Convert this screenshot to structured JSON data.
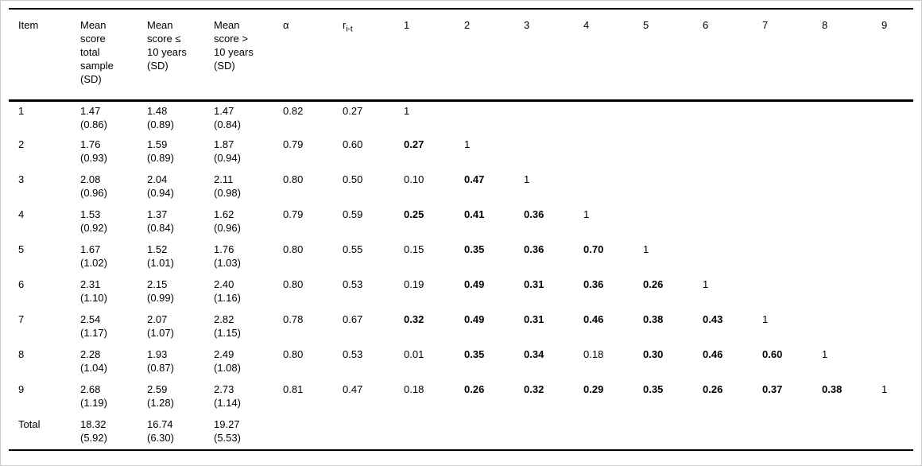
{
  "page": {
    "background": "#ffffff",
    "border_color": "#c9c9c9",
    "rule_color": "#000000"
  },
  "table": {
    "headers": {
      "item": "Item",
      "mean_total": "Mean\nscore\ntotal\nsample\n(SD)",
      "mean_le10": "Mean\nscore ≤\n10 years\n(SD)",
      "mean_gt10": "Mean\nscore >\n10 years\n(SD)",
      "alpha": "α",
      "r_base": "r",
      "r_sub": "i-t",
      "corr_columns": [
        "1",
        "2",
        "3",
        "4",
        "5",
        "6",
        "7",
        "8",
        "9"
      ]
    },
    "rows": [
      {
        "item": "1",
        "mean_total": "1.47",
        "sd_total": "(0.86)",
        "mean_le10": "1.48",
        "sd_le10": "(0.89)",
        "mean_gt10": "1.47",
        "sd_gt10": "(0.84)",
        "alpha": "0.82",
        "rit": "0.27",
        "corr": [
          {
            "v": "1",
            "bold": false
          }
        ]
      },
      {
        "item": "2",
        "mean_total": "1.76",
        "sd_total": "(0.93)",
        "mean_le10": "1.59",
        "sd_le10": "(0.89)",
        "mean_gt10": "1.87",
        "sd_gt10": "(0.94)",
        "alpha": "0.79",
        "rit": "0.60",
        "corr": [
          {
            "v": "0.27",
            "bold": true
          },
          {
            "v": "1",
            "bold": false
          }
        ]
      },
      {
        "item": "3",
        "mean_total": "2.08",
        "sd_total": "(0.96)",
        "mean_le10": "2.04",
        "sd_le10": "(0.94)",
        "mean_gt10": "2.11",
        "sd_gt10": "(0.98)",
        "alpha": "0.80",
        "rit": "0.50",
        "corr": [
          {
            "v": "0.10",
            "bold": false
          },
          {
            "v": "0.47",
            "bold": true
          },
          {
            "v": "1",
            "bold": false
          }
        ]
      },
      {
        "item": "4",
        "mean_total": "1.53",
        "sd_total": "(0.92)",
        "mean_le10": "1.37",
        "sd_le10": "(0.84)",
        "mean_gt10": "1.62",
        "sd_gt10": "(0.96)",
        "alpha": "0.79",
        "rit": "0.59",
        "corr": [
          {
            "v": "0.25",
            "bold": true
          },
          {
            "v": "0.41",
            "bold": true
          },
          {
            "v": "0.36",
            "bold": true
          },
          {
            "v": "1",
            "bold": false
          }
        ]
      },
      {
        "item": "5",
        "mean_total": "1.67",
        "sd_total": "(1.02)",
        "mean_le10": "1.52",
        "sd_le10": "(1.01)",
        "mean_gt10": "1.76",
        "sd_gt10": "(1.03)",
        "alpha": "0.80",
        "rit": "0.55",
        "corr": [
          {
            "v": "0.15",
            "bold": false
          },
          {
            "v": "0.35",
            "bold": true
          },
          {
            "v": "0.36",
            "bold": true
          },
          {
            "v": "0.70",
            "bold": true
          },
          {
            "v": "1",
            "bold": false
          }
        ]
      },
      {
        "item": "6",
        "mean_total": "2.31",
        "sd_total": "(1.10)",
        "mean_le10": "2.15",
        "sd_le10": "(0.99)",
        "mean_gt10": "2.40",
        "sd_gt10": "(1.16)",
        "alpha": "0.80",
        "rit": "0.53",
        "corr": [
          {
            "v": "0.19",
            "bold": false
          },
          {
            "v": "0.49",
            "bold": true
          },
          {
            "v": "0.31",
            "bold": true
          },
          {
            "v": "0.36",
            "bold": true
          },
          {
            "v": "0.26",
            "bold": true
          },
          {
            "v": "1",
            "bold": false
          }
        ]
      },
      {
        "item": "7",
        "mean_total": "2.54",
        "sd_total": "(1.17)",
        "mean_le10": "2.07",
        "sd_le10": "(1.07)",
        "mean_gt10": "2.82",
        "sd_gt10": "(1.15)",
        "alpha": "0.78",
        "rit": "0.67",
        "corr": [
          {
            "v": "0.32",
            "bold": true
          },
          {
            "v": "0.49",
            "bold": true
          },
          {
            "v": "0.31",
            "bold": true
          },
          {
            "v": "0.46",
            "bold": true
          },
          {
            "v": "0.38",
            "bold": true
          },
          {
            "v": "0.43",
            "bold": true
          },
          {
            "v": "1",
            "bold": false
          }
        ]
      },
      {
        "item": "8",
        "mean_total": "2.28",
        "sd_total": "(1.04)",
        "mean_le10": "1.93",
        "sd_le10": "(0.87)",
        "mean_gt10": "2.49",
        "sd_gt10": "(1.08)",
        "alpha": "0.80",
        "rit": "0.53",
        "corr": [
          {
            "v": "0.01",
            "bold": false
          },
          {
            "v": "0.35",
            "bold": true
          },
          {
            "v": "0.34",
            "bold": true
          },
          {
            "v": "0.18",
            "bold": false
          },
          {
            "v": "0.30",
            "bold": true
          },
          {
            "v": "0.46",
            "bold": true
          },
          {
            "v": "0.60",
            "bold": true
          },
          {
            "v": "1",
            "bold": false
          }
        ]
      },
      {
        "item": "9",
        "mean_total": "2.68",
        "sd_total": "(1.19)",
        "mean_le10": "2.59",
        "sd_le10": "(1.28)",
        "mean_gt10": "2.73",
        "sd_gt10": "(1.14)",
        "alpha": "0.81",
        "rit": "0.47",
        "corr": [
          {
            "v": "0.18",
            "bold": false
          },
          {
            "v": "0.26",
            "bold": true
          },
          {
            "v": "0.32",
            "bold": true
          },
          {
            "v": "0.29",
            "bold": true
          },
          {
            "v": "0.35",
            "bold": true
          },
          {
            "v": "0.26",
            "bold": true
          },
          {
            "v": "0.37",
            "bold": true
          },
          {
            "v": "0.38",
            "bold": true
          },
          {
            "v": "1",
            "bold": false
          }
        ]
      },
      {
        "item": "Total",
        "mean_total": "18.32",
        "sd_total": "(5.92)",
        "mean_le10": "16.74",
        "sd_le10": "(6.30)",
        "mean_gt10": "19.27",
        "sd_gt10": "(5.53)",
        "alpha": "",
        "rit": "",
        "corr": []
      }
    ]
  }
}
